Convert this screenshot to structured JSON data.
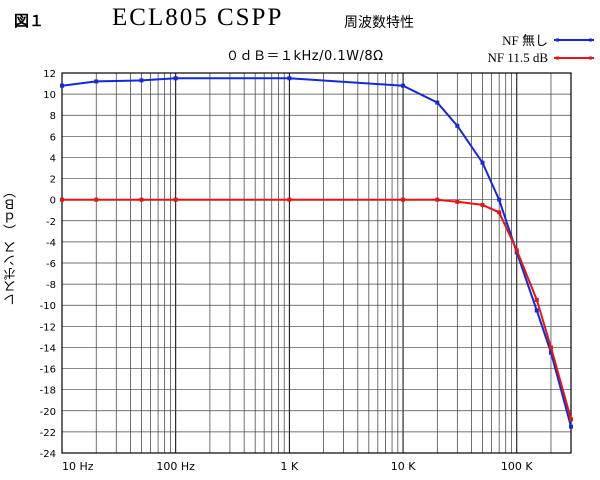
{
  "figure_label": "図１",
  "chart_data": {
    "type": "line",
    "title": "ECL805 CSPP",
    "subtitle": "周波数特性",
    "reference": "０ｄＢ＝１kHz/0.1W/8Ω",
    "xlabel": "",
    "ylabel": "レスポンス （ｄＢ）",
    "x_scale": "log",
    "xlim": [
      10,
      300000
    ],
    "ylim": [
      -24,
      12
    ],
    "grid": true,
    "legend_position": "top-right",
    "x_tick_labels": [
      {
        "x": 10,
        "label": "10 Hz"
      },
      {
        "x": 100,
        "label": "100 Hz"
      },
      {
        "x": 1000,
        "label": "1 K"
      },
      {
        "x": 10000,
        "label": "10 K"
      },
      {
        "x": 100000,
        "label": "100 K"
      }
    ],
    "y_ticks": [
      12,
      10,
      8,
      6,
      4,
      2,
      0,
      -2,
      -4,
      -6,
      -8,
      -10,
      -12,
      -14,
      -16,
      -18,
      -20,
      -22,
      -24
    ],
    "series": [
      {
        "name": "NF 無し",
        "color": "#1428dc",
        "points": [
          {
            "x": 10,
            "y": 10.8
          },
          {
            "x": 20,
            "y": 11.2
          },
          {
            "x": 50,
            "y": 11.3
          },
          {
            "x": 100,
            "y": 11.5
          },
          {
            "x": 1000,
            "y": 11.5
          },
          {
            "x": 10000,
            "y": 10.8
          },
          {
            "x": 20000,
            "y": 9.2
          },
          {
            "x": 30000,
            "y": 7.0
          },
          {
            "x": 50000,
            "y": 3.5
          },
          {
            "x": 70000,
            "y": 0.0
          },
          {
            "x": 100000,
            "y": -5.0
          },
          {
            "x": 150000,
            "y": -10.5
          },
          {
            "x": 200000,
            "y": -14.5
          },
          {
            "x": 300000,
            "y": -21.5
          }
        ]
      },
      {
        "name": "NF 11.5 dB",
        "color": "#e61414",
        "points": [
          {
            "x": 10,
            "y": 0.0
          },
          {
            "x": 20,
            "y": 0.0
          },
          {
            "x": 50,
            "y": 0.0
          },
          {
            "x": 100,
            "y": 0.0
          },
          {
            "x": 1000,
            "y": 0.0
          },
          {
            "x": 10000,
            "y": 0.0
          },
          {
            "x": 20000,
            "y": 0.0
          },
          {
            "x": 30000,
            "y": -0.2
          },
          {
            "x": 50000,
            "y": -0.5
          },
          {
            "x": 70000,
            "y": -1.2
          },
          {
            "x": 100000,
            "y": -4.8
          },
          {
            "x": 150000,
            "y": -9.5
          },
          {
            "x": 200000,
            "y": -14.0
          },
          {
            "x": 300000,
            "y": -20.8
          }
        ]
      }
    ]
  }
}
